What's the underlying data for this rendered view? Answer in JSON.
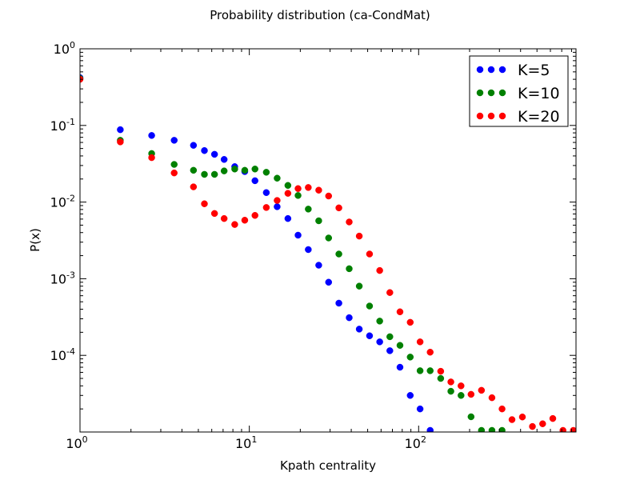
{
  "chart_data": {
    "type": "scatter",
    "title": "Probability distribution (ca-CondMat)",
    "xlabel": "Kpath centrality",
    "ylabel": "P(x)",
    "xscale": "log",
    "yscale": "log",
    "xlim": [
      1,
      850
    ],
    "ylim": [
      1e-05,
      1
    ],
    "grid": false,
    "legend_position": "top-right",
    "xticks": [
      {
        "base": "10",
        "exp": "0",
        "value": 1
      },
      {
        "base": "10",
        "exp": "1",
        "value": 10
      },
      {
        "base": "10",
        "exp": "2",
        "value": 100
      }
    ],
    "yticks": [
      {
        "base": "10",
        "exp": "0",
        "value": 1
      },
      {
        "base": "10",
        "exp": "-1",
        "value": 0.1
      },
      {
        "base": "10",
        "exp": "-2",
        "value": 0.01
      },
      {
        "base": "10",
        "exp": "-3",
        "value": 0.001
      },
      {
        "base": "10",
        "exp": "-4",
        "value": 0.0001
      }
    ],
    "series": [
      {
        "name": "K=5",
        "color": "#0000ff",
        "points": [
          [
            1.0,
            0.42
          ],
          [
            1.73,
            0.088
          ],
          [
            2.65,
            0.074
          ],
          [
            3.6,
            0.064
          ],
          [
            4.68,
            0.055
          ],
          [
            5.43,
            0.047
          ],
          [
            6.23,
            0.042
          ],
          [
            7.1,
            0.036
          ],
          [
            8.2,
            0.029
          ],
          [
            9.4,
            0.025
          ],
          [
            10.8,
            0.019
          ],
          [
            12.6,
            0.0133
          ],
          [
            14.6,
            0.0087
          ],
          [
            16.9,
            0.0061
          ],
          [
            19.4,
            0.0037
          ],
          [
            22.3,
            0.0024
          ],
          [
            25.7,
            0.0015
          ],
          [
            29.4,
            0.0009
          ],
          [
            33.8,
            0.00048
          ],
          [
            38.9,
            0.00031
          ],
          [
            44.6,
            0.00022
          ],
          [
            51.3,
            0.00018
          ],
          [
            58.9,
            0.00015
          ],
          [
            67.6,
            0.000115
          ],
          [
            77.6,
            7e-05
          ],
          [
            89.2,
            3e-05
          ],
          [
            102.0,
            2e-05
          ],
          [
            117.0,
            1.05e-05
          ]
        ]
      },
      {
        "name": "K=10",
        "color": "#008000",
        "points": [
          [
            1.0,
            0.41
          ],
          [
            1.73,
            0.064
          ],
          [
            2.65,
            0.043
          ],
          [
            3.6,
            0.031
          ],
          [
            4.68,
            0.026
          ],
          [
            5.43,
            0.023
          ],
          [
            6.23,
            0.023
          ],
          [
            7.1,
            0.0255
          ],
          [
            8.2,
            0.027
          ],
          [
            9.4,
            0.026
          ],
          [
            10.8,
            0.027
          ],
          [
            12.6,
            0.0245
          ],
          [
            14.6,
            0.0205
          ],
          [
            16.9,
            0.0165
          ],
          [
            19.4,
            0.0122
          ],
          [
            22.3,
            0.0081
          ],
          [
            25.7,
            0.0057
          ],
          [
            29.4,
            0.0034
          ],
          [
            33.8,
            0.0021
          ],
          [
            38.9,
            0.00135
          ],
          [
            44.6,
            0.0008
          ],
          [
            51.3,
            0.00044
          ],
          [
            58.9,
            0.00028
          ],
          [
            67.6,
            0.000175
          ],
          [
            77.6,
            0.000135
          ],
          [
            89.2,
            9.5e-05
          ],
          [
            102.0,
            6.3e-05
          ],
          [
            117.0,
            6.3e-05
          ],
          [
            135.0,
            5e-05
          ],
          [
            155.0,
            3.4e-05
          ],
          [
            178.0,
            3e-05
          ],
          [
            204.0,
            1.58e-05
          ],
          [
            235.0,
            1.05e-05
          ],
          [
            271.0,
            1.05e-05
          ],
          [
            311.0,
            1.05e-05
          ]
        ]
      },
      {
        "name": "K=20",
        "color": "#ff0000",
        "points": [
          [
            1.0,
            0.4
          ],
          [
            1.73,
            0.061
          ],
          [
            2.65,
            0.038
          ],
          [
            3.6,
            0.024
          ],
          [
            4.68,
            0.0158
          ],
          [
            5.43,
            0.0095
          ],
          [
            6.23,
            0.0071
          ],
          [
            7.1,
            0.0061
          ],
          [
            8.2,
            0.0051
          ],
          [
            9.4,
            0.0058
          ],
          [
            10.8,
            0.0067
          ],
          [
            12.6,
            0.0085
          ],
          [
            14.6,
            0.0105
          ],
          [
            16.9,
            0.013
          ],
          [
            19.4,
            0.015
          ],
          [
            22.3,
            0.0155
          ],
          [
            25.7,
            0.0143
          ],
          [
            29.4,
            0.012
          ],
          [
            33.8,
            0.0084
          ],
          [
            38.9,
            0.0055
          ],
          [
            44.6,
            0.0036
          ],
          [
            51.3,
            0.0021
          ],
          [
            58.9,
            0.00128
          ],
          [
            67.6,
            0.00066
          ],
          [
            77.6,
            0.00037
          ],
          [
            89.2,
            0.00027
          ],
          [
            102.0,
            0.00015
          ],
          [
            117.0,
            0.00011
          ],
          [
            135.0,
            6.2e-05
          ],
          [
            155.0,
            4.5e-05
          ],
          [
            178.0,
            4e-05
          ],
          [
            204.0,
            3.1e-05
          ],
          [
            235.0,
            3.5e-05
          ],
          [
            271.0,
            2.8e-05
          ],
          [
            311.0,
            2e-05
          ],
          [
            356.0,
            1.45e-05
          ],
          [
            410.0,
            1.57e-05
          ],
          [
            470.0,
            1.18e-05
          ],
          [
            540.0,
            1.28e-05
          ],
          [
            620.0,
            1.5e-05
          ],
          [
            712.0,
            1.05e-05
          ],
          [
            820.0,
            1.05e-05
          ]
        ]
      }
    ]
  }
}
